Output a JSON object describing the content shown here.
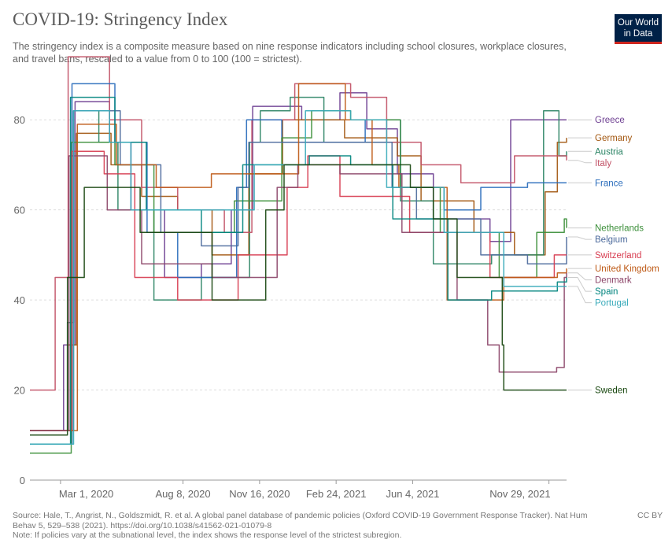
{
  "header": {
    "title": "COVID-19: Stringency Index",
    "subtitle": "The stringency index is a composite measure based on nine response indicators including school closures, workplace closures, and travel bans, rescaled to a value from 0 to 100 (100 = strictest).",
    "logo_line1": "Our World",
    "logo_line2": "in Data"
  },
  "footer": {
    "source": "Source: Hale, T., Angrist, N., Goldszmidt, R. et al. A global panel database of pandemic policies (Oxford COVID-19 Government Response Tracker). Nat Hum Behav 5, 529–538 (2021). https://doi.org/10.1038/s41562-021-01079-8",
    "note": "Note: If policies vary at the subnational level, the index shows the response level of the strictest subregion.",
    "license": "CC BY"
  },
  "chart_data": {
    "type": "line",
    "title": "COVID-19: Stringency Index",
    "ylim": [
      0,
      90
    ],
    "yticks": [
      0,
      20,
      40,
      60,
      80
    ],
    "xlim": [
      "2020-01-21",
      "2021-12-22"
    ],
    "xticks": [
      {
        "date": "2020-03-01",
        "label": "Mar 1, 2020"
      },
      {
        "date": "2020-08-08",
        "label": "Aug 8, 2020"
      },
      {
        "date": "2020-11-16",
        "label": "Nov 16, 2020"
      },
      {
        "date": "2021-02-24",
        "label": "Feb 24, 2021"
      },
      {
        "date": "2021-06-04",
        "label": "Jun 4, 2021"
      },
      {
        "date": "2021-11-29",
        "label": "Nov 29, 2021"
      }
    ],
    "grid": "horizontal-dashed",
    "legend": "right-end-labels",
    "series": [
      {
        "name": "Greece",
        "color": "#6d3e91",
        "points": [
          [
            "2020-01-21",
            11
          ],
          [
            "2020-03-05",
            30
          ],
          [
            "2020-03-20",
            84
          ],
          [
            "2020-05-04",
            75
          ],
          [
            "2020-06-01",
            60
          ],
          [
            "2020-07-15",
            45
          ],
          [
            "2020-09-01",
            48
          ],
          [
            "2020-10-10",
            60
          ],
          [
            "2020-11-07",
            83
          ],
          [
            "2021-01-10",
            80
          ],
          [
            "2021-03-01",
            86
          ],
          [
            "2021-04-05",
            78
          ],
          [
            "2021-05-15",
            68
          ],
          [
            "2021-07-01",
            58
          ],
          [
            "2021-09-13",
            53
          ],
          [
            "2021-10-10",
            80
          ],
          [
            "2021-12-22",
            80
          ]
        ]
      },
      {
        "name": "Germany",
        "color": "#a2560f",
        "points": [
          [
            "2020-01-21",
            11
          ],
          [
            "2020-03-10",
            30
          ],
          [
            "2020-03-22",
            77
          ],
          [
            "2020-05-06",
            70
          ],
          [
            "2020-06-15",
            63
          ],
          [
            "2020-08-01",
            60
          ],
          [
            "2020-09-15",
            50
          ],
          [
            "2020-11-02",
            68
          ],
          [
            "2020-12-16",
            80
          ],
          [
            "2021-03-07",
            76
          ],
          [
            "2021-05-15",
            72
          ],
          [
            "2021-06-15",
            62
          ],
          [
            "2021-08-23",
            55
          ],
          [
            "2021-10-15",
            50
          ],
          [
            "2021-11-24",
            64
          ],
          [
            "2021-12-10",
            75
          ],
          [
            "2021-12-22",
            76
          ]
        ]
      },
      {
        "name": "Austria",
        "color": "#2c8465",
        "points": [
          [
            "2020-01-21",
            11
          ],
          [
            "2020-03-10",
            35
          ],
          [
            "2020-03-18",
            82
          ],
          [
            "2020-04-20",
            75
          ],
          [
            "2020-05-15",
            60
          ],
          [
            "2020-07-01",
            40
          ],
          [
            "2020-09-01",
            45
          ],
          [
            "2020-11-03",
            75
          ],
          [
            "2020-11-17",
            82
          ],
          [
            "2020-12-26",
            85
          ],
          [
            "2021-02-08",
            75
          ],
          [
            "2021-05-19",
            62
          ],
          [
            "2021-07-01",
            48
          ],
          [
            "2021-09-15",
            50
          ],
          [
            "2021-11-22",
            82
          ],
          [
            "2021-12-12",
            72
          ],
          [
            "2021-12-22",
            73
          ]
        ]
      },
      {
        "name": "Italy",
        "color": "#c15065",
        "points": [
          [
            "2020-01-21",
            20
          ],
          [
            "2020-02-23",
            45
          ],
          [
            "2020-03-11",
            94
          ],
          [
            "2020-05-04",
            80
          ],
          [
            "2020-06-15",
            65
          ],
          [
            "2020-08-01",
            60
          ],
          [
            "2020-10-01",
            55
          ],
          [
            "2020-11-06",
            80
          ],
          [
            "2021-01-01",
            88
          ],
          [
            "2021-03-15",
            85
          ],
          [
            "2021-05-01",
            75
          ],
          [
            "2021-06-15",
            70
          ],
          [
            "2021-08-06",
            66
          ],
          [
            "2021-10-15",
            72
          ],
          [
            "2021-12-22",
            71
          ]
        ]
      },
      {
        "name": "France",
        "color": "#286bbb",
        "points": [
          [
            "2020-01-21",
            8
          ],
          [
            "2020-03-16",
            88
          ],
          [
            "2020-05-11",
            75
          ],
          [
            "2020-06-22",
            55
          ],
          [
            "2020-08-01",
            45
          ],
          [
            "2020-10-17",
            65
          ],
          [
            "2020-10-30",
            80
          ],
          [
            "2020-12-15",
            75
          ],
          [
            "2021-01-16",
            75
          ],
          [
            "2021-04-03",
            80
          ],
          [
            "2021-05-19",
            65
          ],
          [
            "2021-07-15",
            60
          ],
          [
            "2021-09-01",
            65
          ],
          [
            "2021-11-01",
            66
          ],
          [
            "2021-12-22",
            66
          ]
        ]
      },
      {
        "name": "Netherlands",
        "color": "#3c8f3a",
        "points": [
          [
            "2020-01-21",
            6
          ],
          [
            "2020-03-15",
            75
          ],
          [
            "2020-05-11",
            70
          ],
          [
            "2020-07-01",
            55
          ],
          [
            "2020-09-15",
            55
          ],
          [
            "2020-10-14",
            62
          ],
          [
            "2020-12-15",
            76
          ],
          [
            "2021-01-23",
            82
          ],
          [
            "2021-03-15",
            80
          ],
          [
            "2021-05-19",
            65
          ],
          [
            "2021-07-10",
            55
          ],
          [
            "2021-09-25",
            45
          ],
          [
            "2021-11-13",
            55
          ],
          [
            "2021-12-19",
            58
          ],
          [
            "2021-12-22",
            56
          ]
        ]
      },
      {
        "name": "Belgium",
        "color": "#4c6a9c",
        "points": [
          [
            "2020-01-21",
            11
          ],
          [
            "2020-03-18",
            82
          ],
          [
            "2020-05-18",
            70
          ],
          [
            "2020-07-10",
            55
          ],
          [
            "2020-09-01",
            52
          ],
          [
            "2020-10-19",
            65
          ],
          [
            "2020-11-02",
            75
          ],
          [
            "2021-03-27",
            75
          ],
          [
            "2021-05-08",
            65
          ],
          [
            "2021-06-09",
            58
          ],
          [
            "2021-09-01",
            50
          ],
          [
            "2021-11-01",
            48
          ],
          [
            "2021-12-22",
            54
          ]
        ]
      },
      {
        "name": "Switzerland",
        "color": "#d73c50",
        "points": [
          [
            "2020-01-21",
            11
          ],
          [
            "2020-03-16",
            73
          ],
          [
            "2020-04-27",
            68
          ],
          [
            "2020-06-06",
            45
          ],
          [
            "2020-08-01",
            40
          ],
          [
            "2020-10-19",
            50
          ],
          [
            "2020-12-22",
            65
          ],
          [
            "2021-01-18",
            72
          ],
          [
            "2021-03-01",
            63
          ],
          [
            "2021-05-31",
            55
          ],
          [
            "2021-09-13",
            45
          ],
          [
            "2021-12-06",
            50
          ],
          [
            "2021-12-22",
            50
          ]
        ]
      },
      {
        "name": "United Kingdom",
        "color": "#be5915",
        "points": [
          [
            "2020-01-21",
            11
          ],
          [
            "2020-03-23",
            79
          ],
          [
            "2020-05-13",
            70
          ],
          [
            "2020-07-04",
            65
          ],
          [
            "2020-09-14",
            68
          ],
          [
            "2020-11-05",
            68
          ],
          [
            "2021-01-06",
            88
          ],
          [
            "2021-03-08",
            80
          ],
          [
            "2021-04-12",
            70
          ],
          [
            "2021-05-17",
            65
          ],
          [
            "2021-07-19",
            40
          ],
          [
            "2021-10-01",
            45
          ],
          [
            "2021-12-10",
            46
          ],
          [
            "2021-12-22",
            47
          ]
        ]
      },
      {
        "name": "Denmark",
        "color": "#8c4569",
        "points": [
          [
            "2020-01-21",
            11
          ],
          [
            "2020-03-12",
            72
          ],
          [
            "2020-05-01",
            60
          ],
          [
            "2020-06-15",
            48
          ],
          [
            "2020-09-15",
            45
          ],
          [
            "2020-12-09",
            65
          ],
          [
            "2021-01-05",
            70
          ],
          [
            "2021-03-01",
            68
          ],
          [
            "2021-05-21",
            55
          ],
          [
            "2021-08-01",
            40
          ],
          [
            "2021-09-10",
            30
          ],
          [
            "2021-09-25",
            24
          ],
          [
            "2021-12-09",
            25
          ],
          [
            "2021-12-19",
            45
          ],
          [
            "2021-12-22",
            46
          ]
        ]
      },
      {
        "name": "Spain",
        "color": "#00847e",
        "points": [
          [
            "2020-01-21",
            8
          ],
          [
            "2020-03-14",
            85
          ],
          [
            "2020-05-11",
            75
          ],
          [
            "2020-06-21",
            60
          ],
          [
            "2020-09-01",
            55
          ],
          [
            "2020-10-25",
            70
          ],
          [
            "2021-01-20",
            72
          ],
          [
            "2021-03-15",
            70
          ],
          [
            "2021-05-09",
            58
          ],
          [
            "2021-07-20",
            40
          ],
          [
            "2021-09-15",
            42
          ],
          [
            "2021-12-10",
            44
          ],
          [
            "2021-12-22",
            45
          ]
        ]
      },
      {
        "name": "Portugal",
        "color": "#38aaba",
        "points": [
          [
            "2020-01-21",
            8
          ],
          [
            "2020-03-18",
            82
          ],
          [
            "2020-05-04",
            75
          ],
          [
            "2020-06-01",
            60
          ],
          [
            "2020-09-15",
            60
          ],
          [
            "2020-11-09",
            70
          ],
          [
            "2021-01-15",
            82
          ],
          [
            "2021-03-15",
            80
          ],
          [
            "2021-05-01",
            65
          ],
          [
            "2021-07-15",
            55
          ],
          [
            "2021-10-01",
            43
          ],
          [
            "2021-12-22",
            43
          ]
        ]
      },
      {
        "name": "Sweden",
        "color": "#18470f",
        "points": [
          [
            "2020-01-21",
            10
          ],
          [
            "2020-03-10",
            45
          ],
          [
            "2020-04-01",
            65
          ],
          [
            "2020-06-13",
            55
          ],
          [
            "2020-09-15",
            40
          ],
          [
            "2020-11-24",
            60
          ],
          [
            "2020-12-18",
            70
          ],
          [
            "2021-01-15",
            70
          ],
          [
            "2021-04-01",
            70
          ],
          [
            "2021-06-01",
            65
          ],
          [
            "2021-07-01",
            58
          ],
          [
            "2021-08-01",
            45
          ],
          [
            "2021-09-29",
            30
          ],
          [
            "2021-10-01",
            20
          ],
          [
            "2021-12-22",
            20
          ]
        ]
      }
    ]
  }
}
